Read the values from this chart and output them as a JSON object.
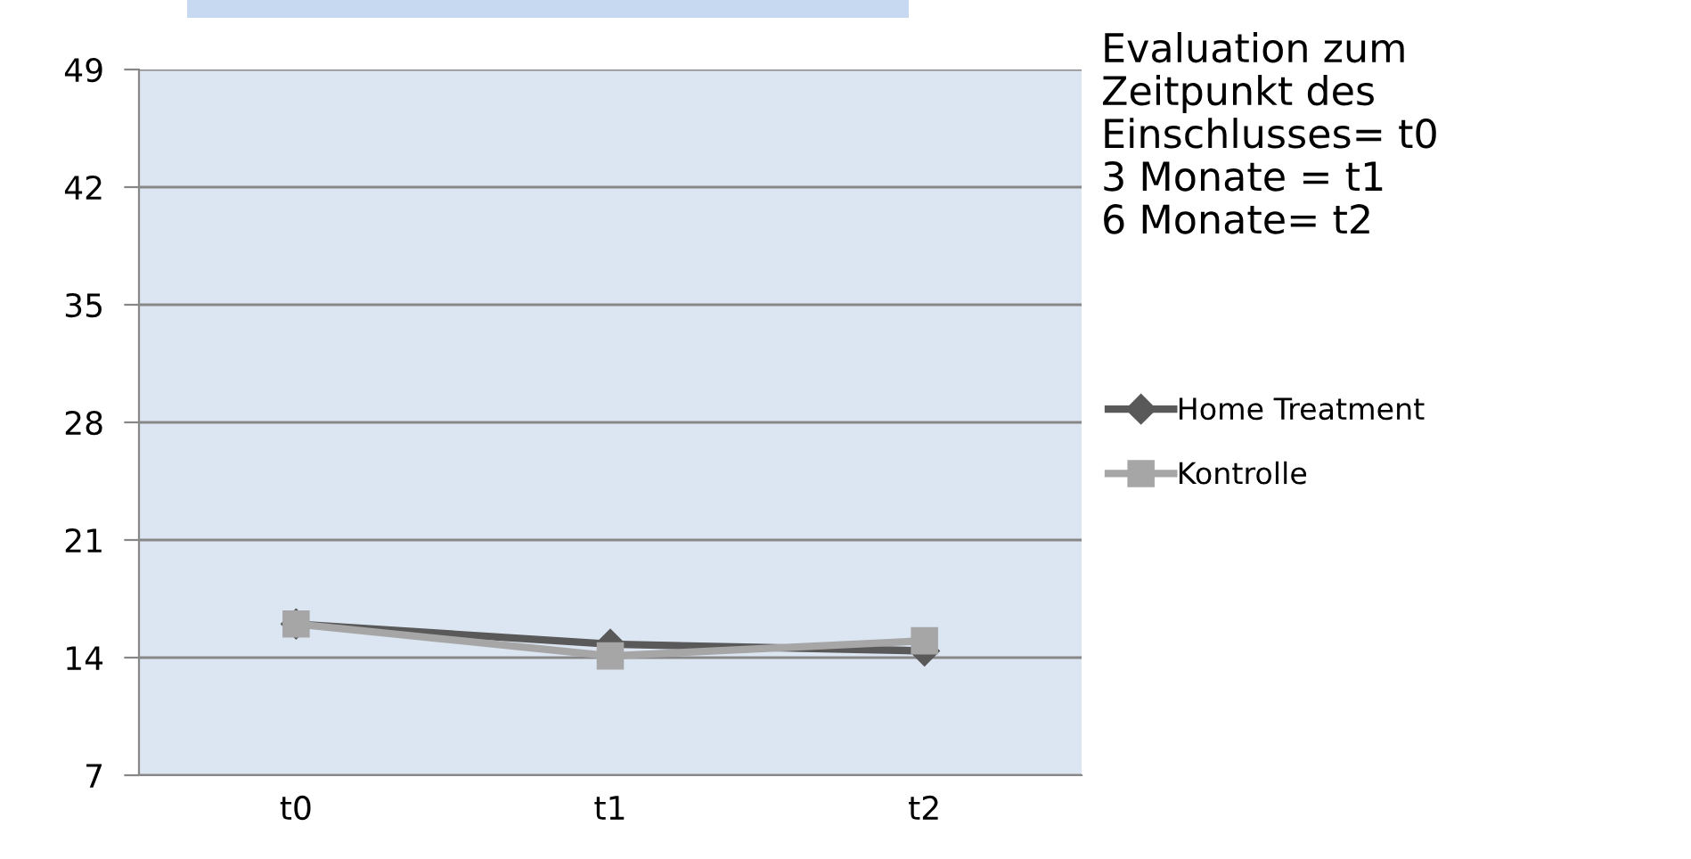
{
  "chart_data": {
    "type": "line",
    "categories": [
      "t0",
      "t1",
      "t2"
    ],
    "series": [
      {
        "name": "Home Treatment",
        "color": "#595959",
        "marker": "diamond",
        "values": [
          16.0,
          14.8,
          14.4
        ]
      },
      {
        "name": "Kontrolle",
        "color": "#a6a6a6",
        "marker": "square",
        "values": [
          16.0,
          14.1,
          15.0
        ]
      }
    ],
    "ylim": [
      7,
      49
    ],
    "yticks": [
      7,
      14,
      21,
      28,
      35,
      42,
      49
    ],
    "grid": "y",
    "legend": "right",
    "line_style": "solid",
    "annotations": [
      "Evaluation zum\nZeitpunkt des\nEinschlusses= t0\n3 Monate = t1\n6 Monate= t2"
    ]
  }
}
